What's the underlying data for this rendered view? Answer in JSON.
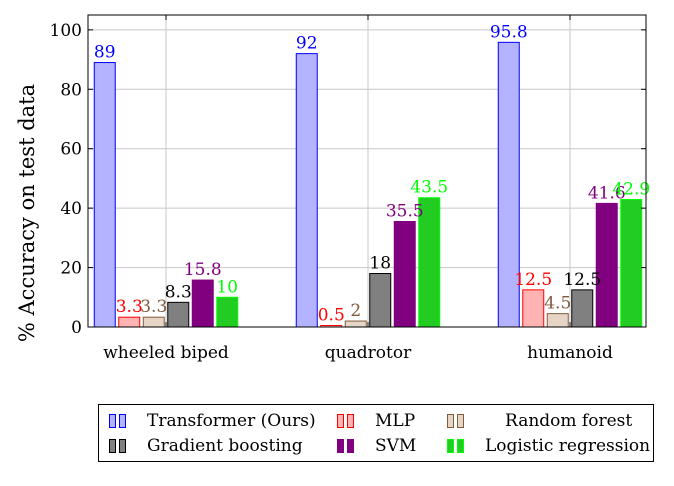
{
  "chart_data": {
    "type": "bar",
    "ylabel": "% Accuracy on test data",
    "ylim": [
      0,
      105
    ],
    "yticks": [
      0,
      20,
      40,
      60,
      80,
      100
    ],
    "grid": true,
    "categories": [
      "wheeled biped",
      "quadrotor",
      "humanoid"
    ],
    "series": [
      {
        "name": "Transformer (Ours)",
        "fill": "#b3b3ff",
        "stroke": "#0000ff",
        "label_color": "#0000ff",
        "values": [
          89,
          92,
          95.8
        ]
      },
      {
        "name": "MLP",
        "fill": "#ffb3b3",
        "stroke": "#ff0000",
        "label_color": "#ff0000",
        "values": [
          3.3,
          0.5,
          12.5
        ]
      },
      {
        "name": "Random forest",
        "fill": "#e6d5c5",
        "stroke": "#805c3d",
        "label_color": "#805c3d",
        "values": [
          3.3,
          2,
          4.5
        ]
      },
      {
        "name": "Gradient boosting",
        "fill": "#808080",
        "stroke": "#000000",
        "label_color": "#000000",
        "values": [
          8.3,
          18,
          12.5
        ]
      },
      {
        "name": "SVM",
        "fill": "#800080",
        "stroke": "#800080",
        "label_color": "#800080",
        "values": [
          15.8,
          35.5,
          41.6
        ]
      },
      {
        "name": "Logistic regression",
        "fill": "#22cc22",
        "stroke": "#00ff00",
        "label_color": "#00ff00",
        "values": [
          10,
          43.5,
          42.9
        ]
      }
    ],
    "value_labels": [
      [
        "89",
        "92",
        "95.8"
      ],
      [
        "3.3",
        "0.5",
        "12.5"
      ],
      [
        "3.3",
        "2",
        "4.5"
      ],
      [
        "8.3",
        "18",
        "12.5"
      ],
      [
        "15.8",
        "35.5",
        "41.6"
      ],
      [
        "10",
        "43.5",
        "42.9"
      ]
    ],
    "legend_position": "bottom"
  }
}
